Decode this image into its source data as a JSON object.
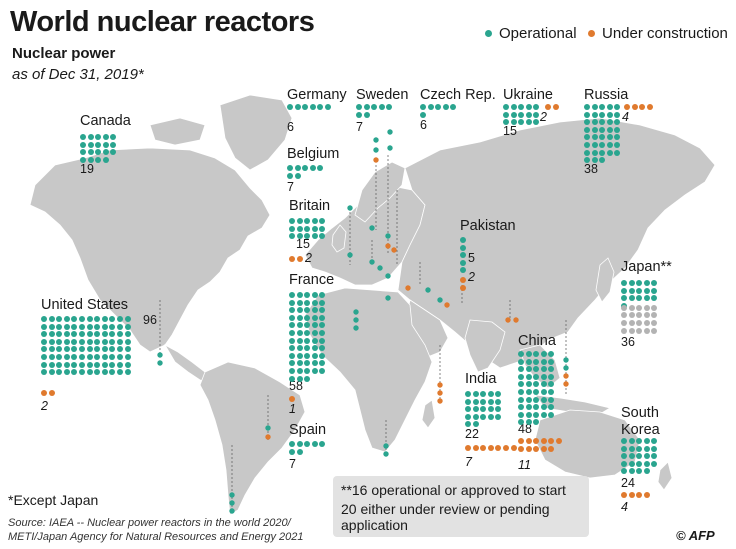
{
  "header": {
    "title": "World nuclear reactors",
    "subtitle": "Nuclear power",
    "as_of": "as of Dec 31, 2019*"
  },
  "legend": {
    "operational": "Operational",
    "under_construction": "Under construction"
  },
  "colors": {
    "operational": "#2aa58f",
    "construction": "#e07a2e",
    "japan_other": "#b3b3b3",
    "land": "#c8c8c8",
    "land_highlight": "#eaeaea",
    "country_border": "#ffffff",
    "leader": "#666666"
  },
  "countries": {
    "canada": {
      "name": "Canada",
      "operational": "19"
    },
    "us": {
      "name": "United States",
      "operational": "96",
      "construction": "2"
    },
    "germany": {
      "name": "Germany",
      "operational": "6"
    },
    "belgium": {
      "name": "Belgium",
      "operational": "7"
    },
    "britain": {
      "name": "Britain",
      "operational": "15",
      "construction": "2"
    },
    "france": {
      "name": "France",
      "operational": "58",
      "construction": "1"
    },
    "spain": {
      "name": "Spain",
      "operational": "7"
    },
    "sweden": {
      "name": "Sweden",
      "operational": "7"
    },
    "czech": {
      "name": "Czech Rep.",
      "operational": "6"
    },
    "ukraine": {
      "name": "Ukraine",
      "operational": "15",
      "construction": "2"
    },
    "russia": {
      "name": "Russia",
      "operational": "38",
      "construction": "4"
    },
    "pakistan": {
      "name": "Pakistan",
      "operational": "5",
      "construction": "2"
    },
    "india": {
      "name": "India",
      "operational": "22",
      "construction": "7"
    },
    "china": {
      "name": "China",
      "operational": "48",
      "construction": "11"
    },
    "japan": {
      "name": "Japan**",
      "total": "36"
    },
    "south_korea": {
      "name_line1": "South",
      "name_line2": "Korea",
      "operational": "24",
      "construction": "4"
    }
  },
  "notes": {
    "japan_line1": "**16 operational or approved to start",
    "japan_line2": "20 either under review or pending",
    "japan_line3": "application",
    "except_japan": "*Except Japan",
    "source": "Source: IAEA -- Nuclear power reactors in the world 2020/ METI/Japan Agency for Natural Resources and Energy 2021",
    "credit": "© AFP"
  }
}
